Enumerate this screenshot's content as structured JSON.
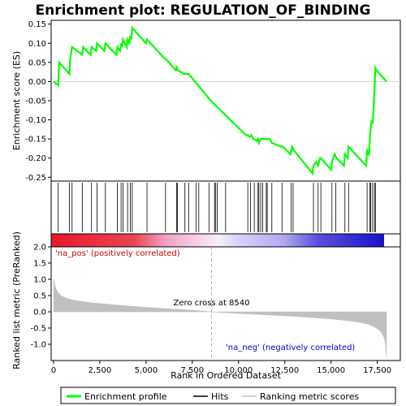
{
  "chart_data": {
    "type": "line",
    "title": "Enrichment plot: REGULATION_OF_BINDING",
    "top_panel": {
      "ylabel": "Enrichment score (ES)",
      "ylim": [
        -0.26,
        0.16
      ],
      "yticks": [
        0.15,
        0.1,
        0.05,
        0.0,
        -0.05,
        -0.1,
        -0.15,
        -0.2,
        -0.25
      ],
      "ytick_labels": [
        "0.15",
        "0.10",
        "0.05",
        "0.00",
        "-0.05",
        "-0.10",
        "-0.15",
        "-0.20",
        "-0.25"
      ],
      "series": [
        {
          "name": "Enrichment profile",
          "color": "#00ff00",
          "x": [
            0,
            250,
            300,
            850,
            900,
            1000,
            1550,
            1600,
            2000,
            2050,
            2300,
            2350,
            2750,
            2800,
            3400,
            3450,
            3600,
            3650,
            3700,
            3750,
            3950,
            4000,
            4100,
            4150,
            4200,
            4250,
            5000,
            5050,
            6000,
            6050,
            6600,
            6650,
            6700,
            7050,
            7100,
            7300,
            8500,
            10400,
            10500,
            10600,
            10700,
            10800,
            11000,
            11050,
            11100,
            11200,
            11300,
            11500,
            11700,
            11800,
            12300,
            12400,
            12800,
            12850,
            12900,
            13000,
            14000,
            14050,
            14200,
            14300,
            14400,
            14450,
            15000,
            15050,
            15200,
            15300,
            15700,
            15750,
            15900,
            15950,
            16900,
            16950,
            17050,
            17100,
            17150,
            17200,
            17250,
            17300,
            17350,
            17400,
            17450,
            18000
          ],
          "y": [
            0.0,
            -0.01,
            0.05,
            0.02,
            0.06,
            0.09,
            0.07,
            0.09,
            0.07,
            0.09,
            0.08,
            0.1,
            0.08,
            0.1,
            0.07,
            0.09,
            0.08,
            0.1,
            0.09,
            0.11,
            0.09,
            0.11,
            0.1,
            0.12,
            0.11,
            0.14,
            0.1,
            0.11,
            0.06,
            0.06,
            0.03,
            0.04,
            0.03,
            0.02,
            0.02,
            0.02,
            -0.05,
            -0.14,
            -0.14,
            -0.145,
            -0.14,
            -0.15,
            -0.155,
            -0.15,
            -0.16,
            -0.15,
            -0.15,
            -0.15,
            -0.15,
            -0.16,
            -0.17,
            -0.17,
            -0.19,
            -0.18,
            -0.17,
            -0.18,
            -0.24,
            -0.22,
            -0.21,
            -0.22,
            -0.2,
            -0.2,
            -0.23,
            -0.21,
            -0.19,
            -0.2,
            -0.22,
            -0.19,
            -0.2,
            -0.17,
            -0.22,
            -0.18,
            -0.19,
            -0.15,
            -0.12,
            -0.1,
            -0.11,
            -0.07,
            -0.02,
            0.035,
            0.03,
            0.0
          ]
        }
      ]
    },
    "hits": {
      "name": "Hits",
      "color": "#000000",
      "x": [
        250,
        850,
        1000,
        1550,
        2050,
        2350,
        2800,
        3450,
        3650,
        3750,
        4000,
        4150,
        4250,
        5050,
        6050,
        6650,
        6700,
        7100,
        7300,
        7700,
        7850,
        8400,
        8700,
        8750,
        8850,
        9300,
        10500,
        10650,
        10850,
        11050,
        11100,
        11200,
        11300,
        11500,
        11550,
        11800,
        12350,
        12850,
        12950,
        14050,
        14300,
        14450,
        15050,
        15250,
        15750,
        15950,
        16950,
        17100,
        17150,
        17250,
        17350,
        17400
      ]
    },
    "ranking_panel": {
      "ylabel": "Ranked list metric (PreRanked)",
      "xlabel": "Rank in Ordered Dataset",
      "ylim": [
        -1.5,
        2.0
      ],
      "yticks": [
        2.0,
        1.5,
        1.0,
        0.5,
        0.0,
        -0.5,
        -1.0
      ],
      "ytick_labels": [
        "2.0",
        "1.5",
        "1.0",
        "0.5",
        "0.0",
        "-0.5",
        "-1.0"
      ],
      "xlim": [
        0,
        18000
      ],
      "xticks": [
        0,
        2500,
        5000,
        7500,
        10000,
        12500,
        15000,
        17500
      ],
      "xtick_labels": [
        "0",
        "2,500",
        "5,000",
        "7,500",
        "10,000",
        "12,500",
        "15,000",
        "17,500"
      ],
      "series": {
        "name": "Ranking metric scores",
        "color": "#c0c0c0",
        "x": [
          0,
          100,
          200,
          400,
          700,
          1000,
          1500,
          2000,
          3000,
          4000,
          5000,
          6000,
          7000,
          8000,
          8540,
          9000,
          10000,
          11000,
          12000,
          13000,
          14000,
          15000,
          15500,
          16000,
          16500,
          17000,
          17300,
          17500,
          17700,
          17800,
          17900,
          17950,
          18000
        ],
        "y": [
          1.0,
          0.75,
          0.62,
          0.5,
          0.42,
          0.37,
          0.32,
          0.28,
          0.23,
          0.18,
          0.14,
          0.1,
          0.07,
          0.03,
          0.0,
          -0.02,
          -0.05,
          -0.08,
          -0.11,
          -0.14,
          -0.18,
          -0.22,
          -0.25,
          -0.28,
          -0.32,
          -0.38,
          -0.45,
          -0.52,
          -0.62,
          -0.7,
          -0.85,
          -1.05,
          -1.4
        ]
      },
      "zero_cross": {
        "x": 8540,
        "label": "Zero cross at 8540"
      },
      "pos_label": "'na_pos' (positively correlated)",
      "neg_label": "'na_neg' (negatively correlated)"
    },
    "legend": [
      {
        "label": "Enrichment profile",
        "color": "#00ff00",
        "kind": "thick-line"
      },
      {
        "label": "Hits",
        "color": "#000000",
        "kind": "line"
      },
      {
        "label": "Ranking metric scores",
        "color": "#c0c0c0",
        "kind": "line"
      }
    ],
    "colors": {
      "positive": "#e8182a",
      "negative": "#1a10c8",
      "zero_cross_line": "#b0b0b0",
      "grid": "#d3d3d3"
    }
  }
}
